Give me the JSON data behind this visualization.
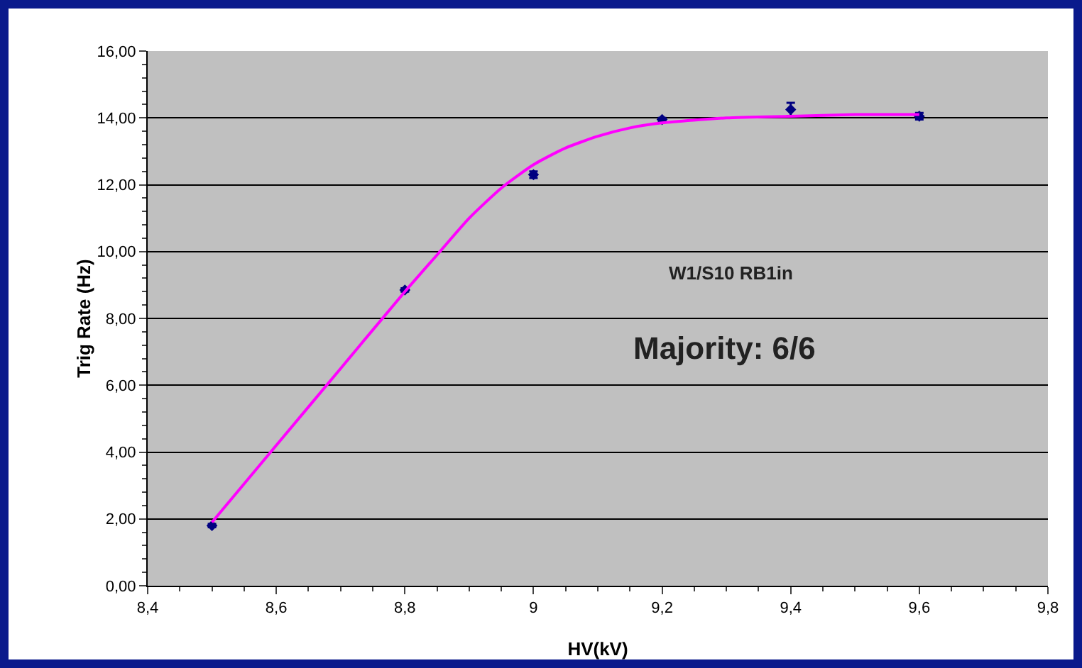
{
  "chart_data": {
    "type": "scatter",
    "xlabel": "HV(kV)",
    "ylabel": "Trig Rate (Hz)",
    "annotations": [
      "W1/S10 RB1in",
      "Majority: 6/6"
    ],
    "series": [
      {
        "color": "#000080",
        "marker": "diamond",
        "x": [
          8.5,
          8.8,
          9.0,
          9.2,
          9.4,
          9.6
        ],
        "values": [
          1.8,
          8.85,
          12.3,
          13.95,
          14.25,
          14.05
        ],
        "errors": [
          0.05,
          0.05,
          0.1,
          0.05,
          0.2,
          0.1
        ]
      },
      {
        "type": "line",
        "marker": "none",
        "color": "#ff00ff",
        "x": [
          8.5,
          8.6,
          8.7,
          8.8,
          8.85,
          8.9,
          8.95,
          9.0,
          9.05,
          9.1,
          9.15,
          9.2,
          9.3,
          9.4,
          9.5,
          9.6
        ],
        "values": [
          1.9,
          4.2,
          6.5,
          8.8,
          9.9,
          11.0,
          11.9,
          12.6,
          13.1,
          13.45,
          13.7,
          13.85,
          14.0,
          14.05,
          14.1,
          14.1
        ]
      }
    ],
    "grid": "y",
    "xlim": [
      8.4,
      9.8
    ],
    "xticks": [
      {
        "value": 8.4,
        "label": "8,4"
      },
      {
        "value": 8.6,
        "label": "8,6"
      },
      {
        "value": 8.8,
        "label": "8,8"
      },
      9,
      {
        "value": 9.2,
        "label": "9,2"
      },
      {
        "value": 9.4,
        "label": "9,4"
      },
      {
        "value": 9.6,
        "label": "9,6"
      },
      {
        "value": 9.8,
        "label": "9,8"
      }
    ],
    "ylim": [
      0,
      16
    ],
    "yticks": [
      {
        "value": 0,
        "label": "0,00"
      },
      {
        "value": 2,
        "label": "2,00"
      },
      {
        "value": 4,
        "label": "4,00"
      },
      {
        "value": 6,
        "label": "6,00"
      },
      {
        "value": 8,
        "label": "8,00"
      },
      {
        "value": 10,
        "label": "10,00"
      },
      {
        "value": 12,
        "label": "12,00"
      },
      {
        "value": 14,
        "label": "14,00"
      },
      {
        "value": 16,
        "label": "16,00"
      }
    ]
  }
}
